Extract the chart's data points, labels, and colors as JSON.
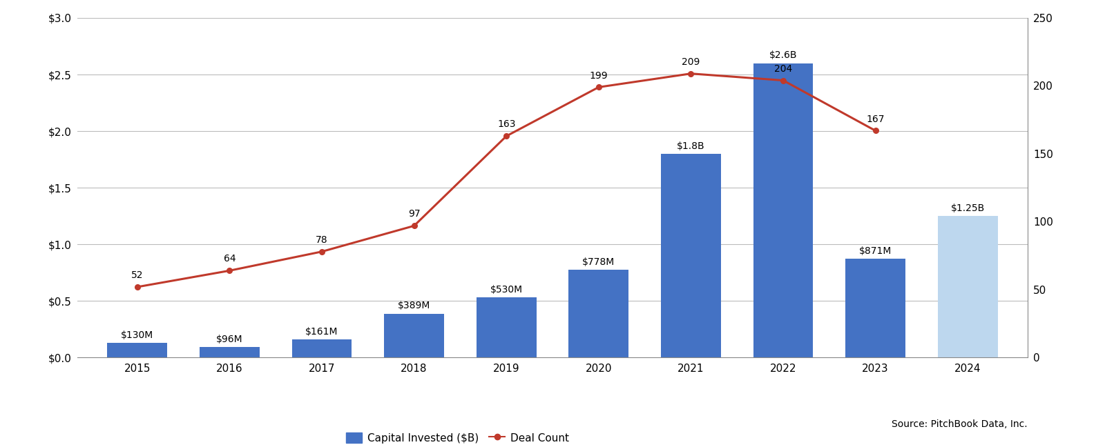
{
  "years": [
    2015,
    2016,
    2017,
    2018,
    2019,
    2020,
    2021,
    2022,
    2023,
    2024
  ],
  "capital_invested": [
    0.13,
    0.096,
    0.161,
    0.389,
    0.53,
    0.778,
    1.8,
    2.6,
    0.871,
    1.25
  ],
  "deal_count": [
    52,
    64,
    78,
    97,
    163,
    199,
    209,
    204,
    167,
    null
  ],
  "capital_labels": [
    "$130M",
    "$96M",
    "$161M",
    "$389M",
    "$530M",
    "$778M",
    "$1.8B",
    "$2.6B",
    "$871M",
    "$1.25B"
  ],
  "deal_labels": [
    "52",
    "64",
    "78",
    "97",
    "163",
    "199",
    "209",
    "204",
    "167",
    ""
  ],
  "bar_colors": [
    "#4472C4",
    "#4472C4",
    "#4472C4",
    "#4472C4",
    "#4472C4",
    "#4472C4",
    "#4472C4",
    "#4472C4",
    "#4472C4",
    "#BDD7EE"
  ],
  "line_color": "#C0392B",
  "line_marker": "o",
  "ylim_left": [
    0,
    3.0
  ],
  "ylim_right": [
    0,
    250
  ],
  "yticks_left": [
    0.0,
    0.5,
    1.0,
    1.5,
    2.0,
    2.5,
    3.0
  ],
  "ytick_labels_left": [
    "$0.0",
    "$0.5",
    "$1.0",
    "$1.5",
    "$2.0",
    "$2.5",
    "$3.0"
  ],
  "yticks_right": [
    0,
    50,
    100,
    150,
    200,
    250
  ],
  "background_color": "#FFFFFF",
  "grid_color": "#BBBBBB",
  "legend_bar_label": "Capital Invested ($B)",
  "legend_line_label": "Deal Count",
  "source_text": "Source: PitchBook Data, Inc.",
  "fig_width": 16.0,
  "fig_height": 6.48,
  "bar_width": 0.65,
  "font_size_ticks": 11,
  "font_size_labels": 10,
  "font_size_source": 10
}
